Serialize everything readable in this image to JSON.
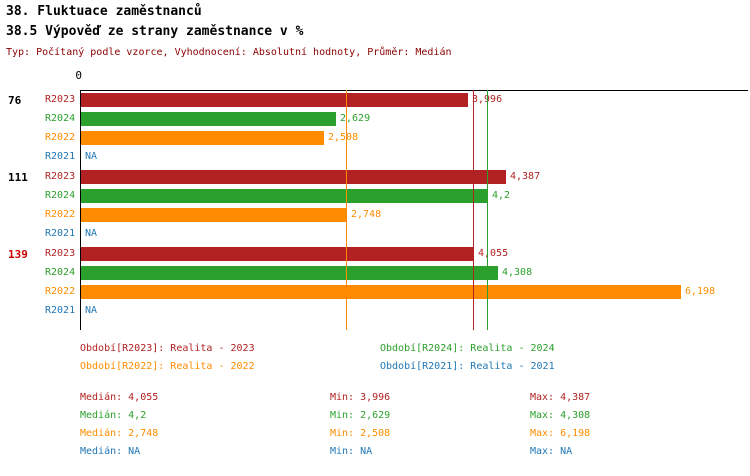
{
  "chart_data": {
    "type": "bar",
    "orientation": "horizontal",
    "title": "38. Fluktuace zaměstnanců",
    "subtitle": "38.5 Výpověď ze strany zaměstnance v %",
    "meta": "Typ: Počítaný podle vzorce, Vyhodnocení: Absolutní hodnoty, Průměr: Medián",
    "x_origin_label": "0",
    "xmax": 6.9,
    "axis_color": "#000000",
    "series_order": [
      "R2023",
      "R2024",
      "R2022",
      "R2021"
    ],
    "series_colors": {
      "R2023": "#b22222",
      "R2024": "#2ca02c",
      "R2022": "#ff8c00",
      "R2021": "#1f77b4"
    },
    "groups": [
      {
        "label": "76",
        "label_color": "#000000",
        "values": [
          {
            "series": "R2023",
            "value": 3.996,
            "display": "3,996"
          },
          {
            "series": "R2024",
            "value": 2.629,
            "display": "2,629"
          },
          {
            "series": "R2022",
            "value": 2.508,
            "display": "2,508"
          },
          {
            "series": "R2021",
            "value": null,
            "display": "NA"
          }
        ]
      },
      {
        "label": "111",
        "label_color": "#000000",
        "values": [
          {
            "series": "R2023",
            "value": 4.387,
            "display": "4,387"
          },
          {
            "series": "R2024",
            "value": 4.2,
            "display": "4,2"
          },
          {
            "series": "R2022",
            "value": 2.748,
            "display": "2,748"
          },
          {
            "series": "R2021",
            "value": null,
            "display": "NA"
          }
        ]
      },
      {
        "label": "139",
        "label_color": "#cc0000",
        "values": [
          {
            "series": "R2023",
            "value": 4.055,
            "display": "4,055"
          },
          {
            "series": "R2024",
            "value": 4.308,
            "display": "4,308"
          },
          {
            "series": "R2022",
            "value": 6.198,
            "display": "6,198"
          },
          {
            "series": "R2021",
            "value": null,
            "display": "NA"
          }
        ]
      }
    ],
    "median_lines": [
      {
        "series": "R2023",
        "value": 4.055,
        "color": "#b22222"
      },
      {
        "series": "R2024",
        "value": 4.2,
        "color": "#2ca02c"
      },
      {
        "series": "R2022",
        "value": 2.748,
        "color": "#ff8c00"
      }
    ],
    "legend_rows": [
      [
        {
          "label": "Období[R2023]: Realita - 2023",
          "color": "#b22222"
        },
        {
          "label": "Období[R2024]: Realita - 2024",
          "color": "#2ca02c"
        }
      ],
      [
        {
          "label": "Období[R2022]: Realita - 2022",
          "color": "#ff8c00"
        },
        {
          "label": "Období[R2021]: Realita - 2021",
          "color": "#1f77b4"
        }
      ]
    ],
    "stats_rows": [
      {
        "color": "#b22222",
        "median": "Medián: 4,055",
        "min": "Min: 3,996",
        "max": "Max: 4,387"
      },
      {
        "color": "#2ca02c",
        "median": "Medián: 4,2",
        "min": "Min: 2,629",
        "max": "Max: 4,308"
      },
      {
        "color": "#ff8c00",
        "median": "Medián: 2,748",
        "min": "Min: 2,508",
        "max": "Max: 6,198"
      },
      {
        "color": "#1f77b4",
        "median": "Medián: NA",
        "min": "Min: NA",
        "max": "Max: NA"
      }
    ]
  }
}
